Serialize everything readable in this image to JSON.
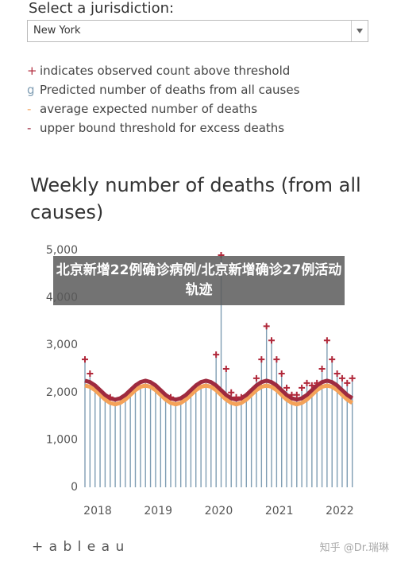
{
  "header": {
    "prompt": "Select a jurisdiction:",
    "selected": "New York"
  },
  "chart_data": {
    "type": "bar",
    "title": "Weekly number of deaths (from all causes)",
    "markers": {
      "symbol": "+",
      "name": "indicates observed count above threshold",
      "color": "#b0283a"
    },
    "x": [
      2018.0,
      2018.083,
      2018.167,
      2018.25,
      2018.333,
      2018.417,
      2018.5,
      2018.583,
      2018.667,
      2018.75,
      2018.833,
      2018.917,
      2019.0,
      2019.083,
      2019.167,
      2019.25,
      2019.333,
      2019.417,
      2019.5,
      2019.583,
      2019.667,
      2019.75,
      2019.833,
      2019.917,
      2020.0,
      2020.083,
      2020.167,
      2020.25,
      2020.333,
      2020.417,
      2020.5,
      2020.583,
      2020.667,
      2020.75,
      2020.833,
      2020.917,
      2021.0,
      2021.083,
      2021.167,
      2021.25,
      2021.333,
      2021.417,
      2021.5,
      2021.583,
      2021.667,
      2021.75,
      2021.833,
      2021.917,
      2022.0,
      2022.083,
      2022.167,
      2022.25,
      2022.333,
      2022.417
    ],
    "series": [
      {
        "name": "Predicted number of deaths from all causes",
        "symbol": "g",
        "type": "bar",
        "color": "#7f9db3",
        "values": [
          2700,
          2400,
          2150,
          2050,
          1950,
          1900,
          1850,
          1850,
          1850,
          1950,
          2000,
          2150,
          2250,
          2150,
          2100,
          2000,
          1950,
          1900,
          1850,
          1850,
          1850,
          1950,
          2000,
          2150,
          2250,
          2150,
          2800,
          4900,
          2500,
          2000,
          1900,
          1900,
          1900,
          1950,
          2300,
          2700,
          3400,
          3100,
          2700,
          2400,
          2100,
          1950,
          1950,
          2100,
          2200,
          2150,
          2200,
          2500,
          3100,
          2700,
          2400,
          2300,
          2200,
          2300
        ]
      },
      {
        "name": "average expected number of deaths",
        "symbol": "-",
        "type": "line",
        "color": "#f4a259",
        "values": [
          2150,
          2120,
          2050,
          1950,
          1850,
          1780,
          1750,
          1780,
          1850,
          1950,
          2050,
          2120,
          2150,
          2120,
          2050,
          1950,
          1850,
          1780,
          1750,
          1780,
          1850,
          1950,
          2050,
          2120,
          2150,
          2120,
          2050,
          1950,
          1850,
          1780,
          1750,
          1780,
          1850,
          1950,
          2050,
          2120,
          2150,
          2120,
          2050,
          1950,
          1850,
          1780,
          1750,
          1780,
          1850,
          1950,
          2050,
          2120,
          2150,
          2120,
          2050,
          1950,
          1850,
          1780
        ]
      },
      {
        "name": "upper bound threshold for excess deaths",
        "symbol": "-",
        "type": "line",
        "color": "#9e2a3f",
        "values": [
          2250,
          2220,
          2150,
          2050,
          1950,
          1880,
          1850,
          1880,
          1950,
          2050,
          2150,
          2220,
          2250,
          2220,
          2150,
          2050,
          1950,
          1880,
          1850,
          1880,
          1950,
          2050,
          2150,
          2220,
          2250,
          2220,
          2150,
          2050,
          1950,
          1880,
          1850,
          1880,
          1950,
          2050,
          2150,
          2220,
          2250,
          2220,
          2150,
          2050,
          1950,
          1880,
          1850,
          1880,
          1950,
          2050,
          2150,
          2220,
          2250,
          2220,
          2150,
          2050,
          1950,
          1880
        ]
      }
    ],
    "xlim": [
      2018,
      2022.5
    ],
    "xticks": [
      2018,
      2019,
      2020,
      2021,
      2022
    ],
    "ylim": [
      0,
      5000
    ],
    "yticks": [
      0,
      {
        "value": 1000,
        "label": "1,000"
      },
      {
        "value": 2000,
        "label": "2,000"
      },
      {
        "value": 3000,
        "label": "3,000"
      },
      {
        "value": 4000,
        "label": "4,000"
      },
      {
        "value": 5000,
        "label": "5,000"
      }
    ],
    "grid": false
  },
  "overlay": "北京新增22例确诊病例/北京新增确诊27例活动轨迹",
  "watermark": "知乎 @Dr.瑞琳",
  "footer": "+ a b l e a u"
}
